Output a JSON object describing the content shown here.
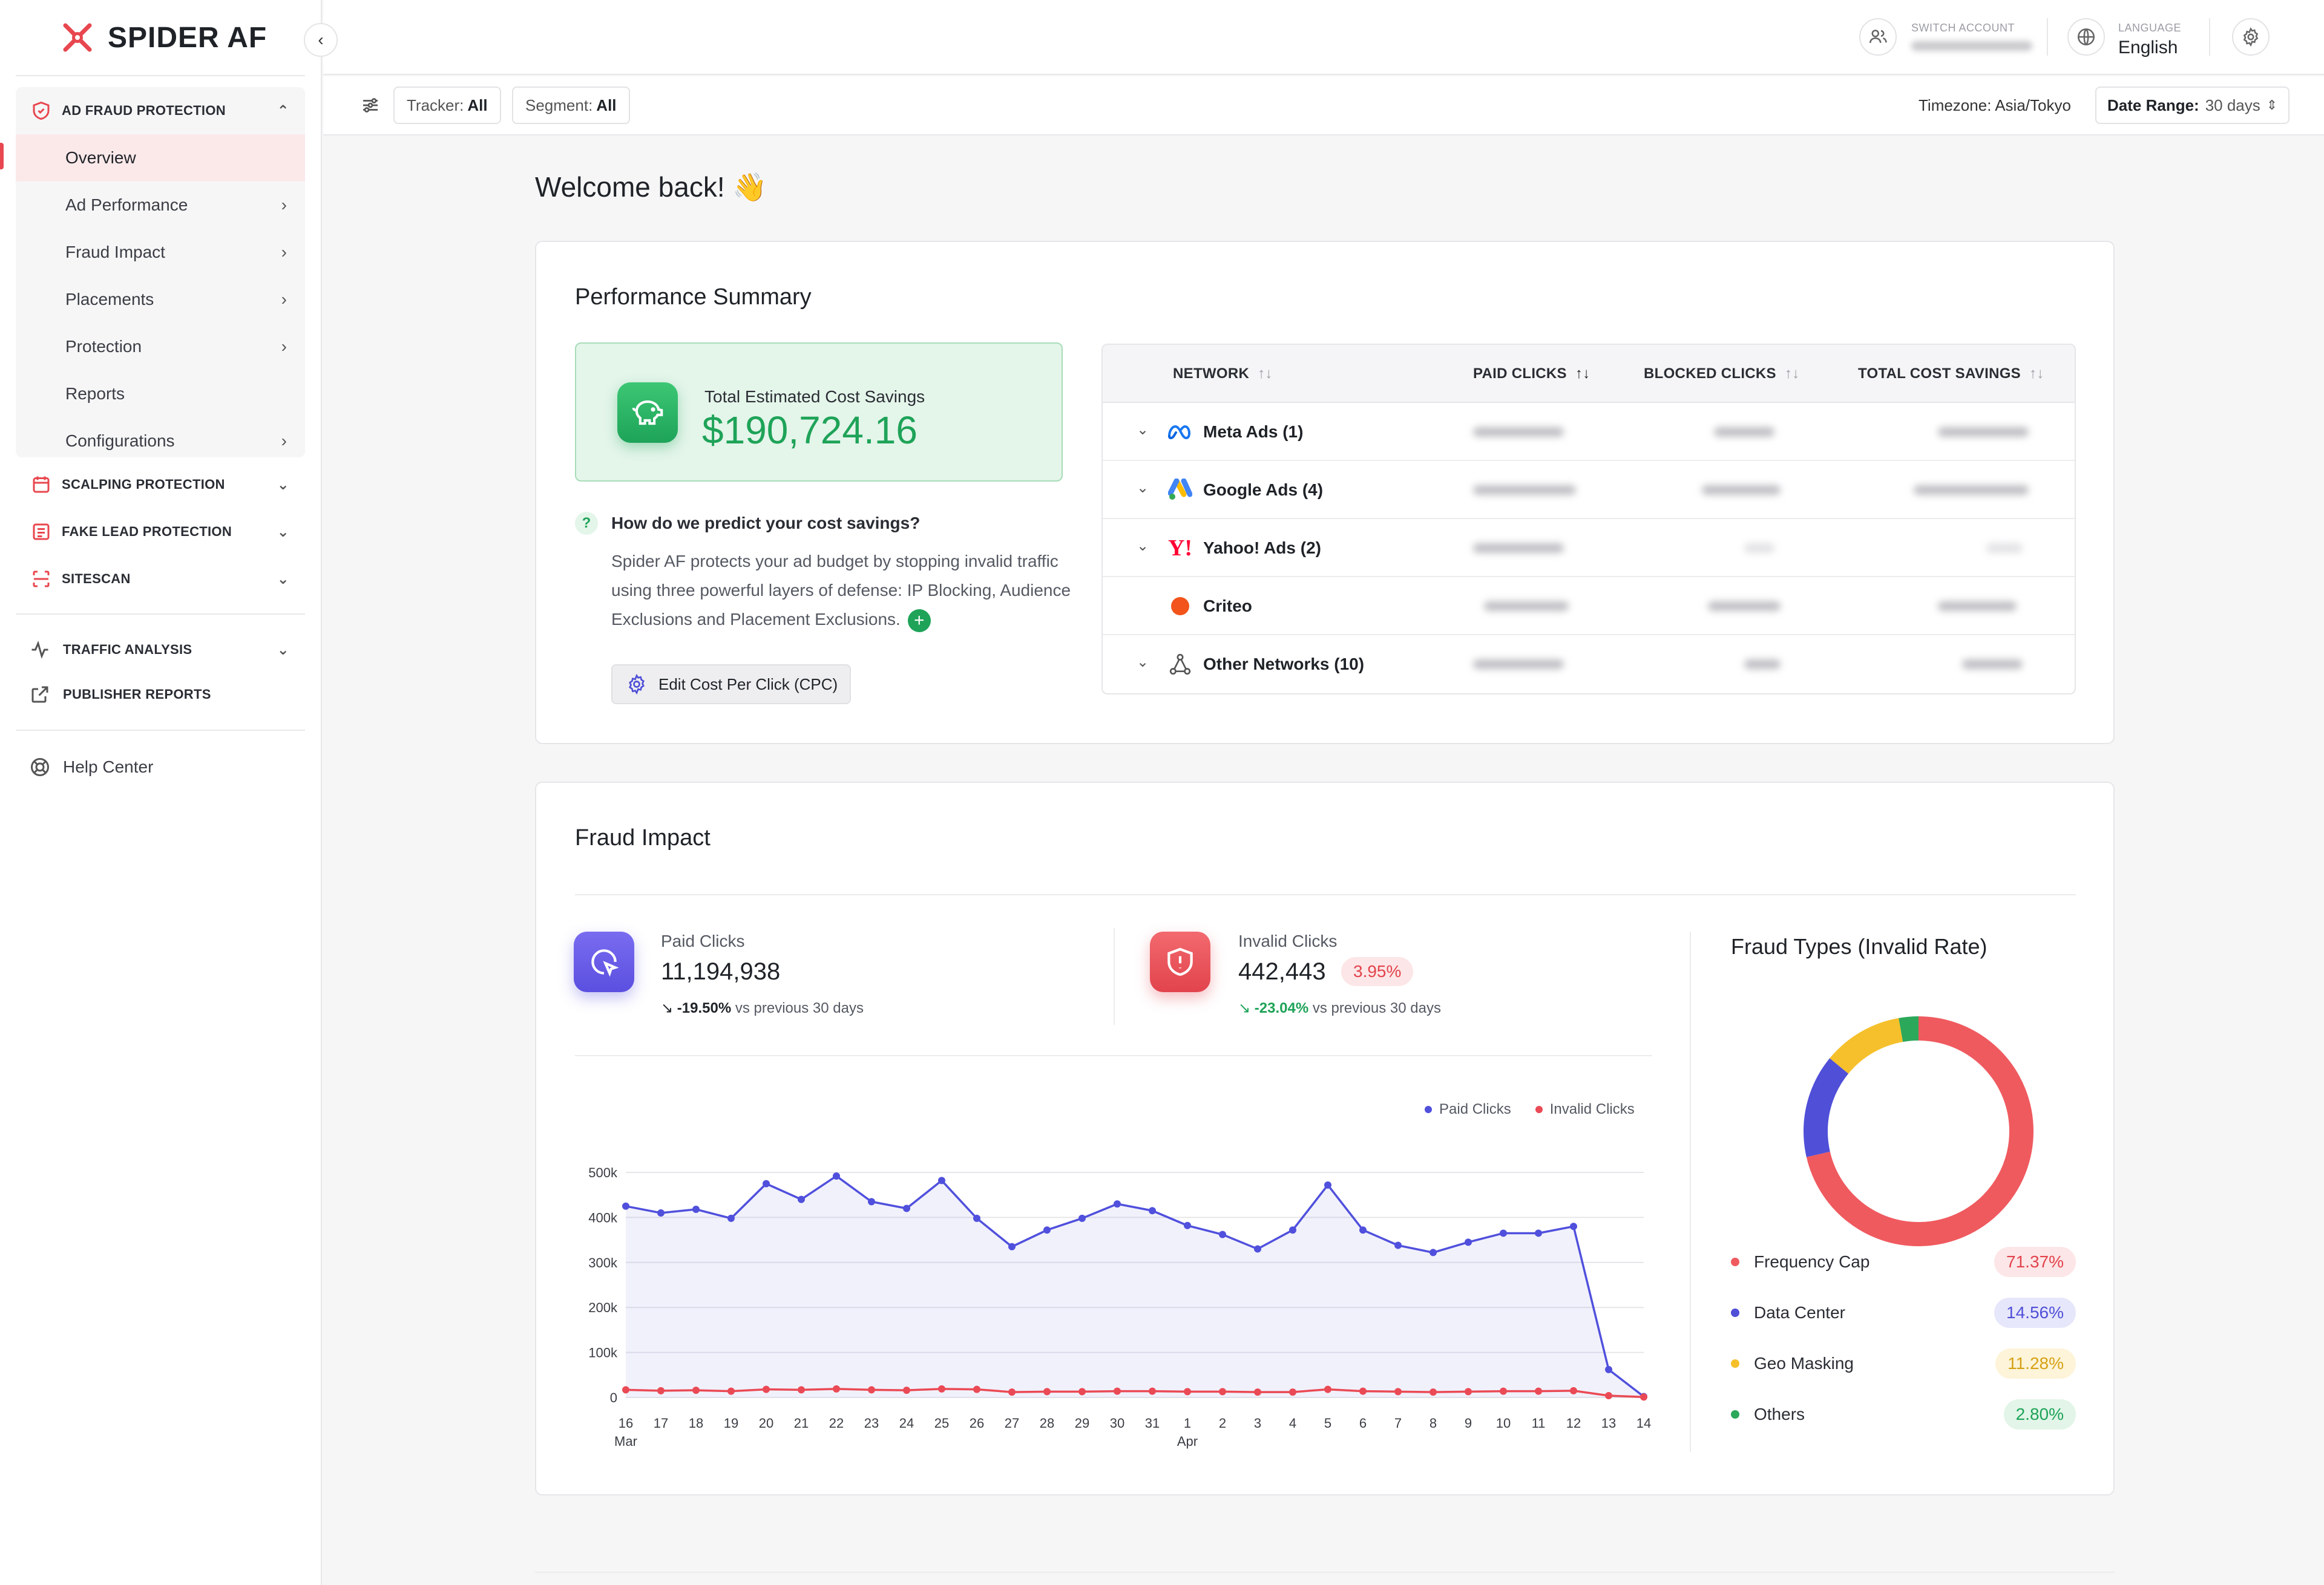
{
  "brand": {
    "name": "SPIDER AF"
  },
  "sidebar": {
    "groups": [
      {
        "label": "AD FRAUD PROTECTION",
        "icon": "shield-icon"
      },
      {
        "label": "SCALPING PROTECTION",
        "icon": "calendar-icon"
      },
      {
        "label": "FAKE LEAD PROTECTION",
        "icon": "form-icon"
      },
      {
        "label": "SITESCAN",
        "icon": "scan-icon"
      }
    ],
    "ad_fraud_items": [
      {
        "label": "Overview",
        "active": true
      },
      {
        "label": "Ad Performance"
      },
      {
        "label": "Fraud Impact"
      },
      {
        "label": "Placements"
      },
      {
        "label": "Protection"
      },
      {
        "label": "Reports"
      },
      {
        "label": "Configurations"
      }
    ],
    "traffic_analysis": "TRAFFIC ANALYSIS",
    "publisher_reports": "PUBLISHER REPORTS",
    "help_center": "Help Center"
  },
  "topbar": {
    "switch_account_label": "SWITCH ACCOUNT",
    "language_label": "LANGUAGE",
    "language_value": "English"
  },
  "filterbar": {
    "tracker_label": "Tracker:",
    "tracker_value": "All",
    "segment_label": "Segment:",
    "segment_value": "All",
    "timezone": "Timezone: Asia/Tokyo",
    "date_range_label": "Date Range:",
    "date_range_value": "30 days"
  },
  "welcome": "Welcome back! 👋",
  "performance_summary": {
    "title": "Performance Summary",
    "savings_label": "Total Estimated Cost Savings",
    "savings_value": "$190,724.16",
    "question": "How do we predict your cost savings?",
    "explanation": "Spider AF protects your ad budget by stopping invalid traffic using three powerful layers of defense: IP Blocking, Audience Exclusions and Placement Exclusions.",
    "edit_cpc": "Edit Cost Per Click (CPC)",
    "table": {
      "headers": [
        "NETWORK",
        "PAID CLICKS",
        "BLOCKED CLICKS",
        "TOTAL COST SAVINGS"
      ],
      "rows": [
        {
          "name": "Meta Ads (1)",
          "icon": "meta-icon",
          "expandable": true
        },
        {
          "name": "Google Ads (4)",
          "icon": "google-ads-icon",
          "expandable": true
        },
        {
          "name": "Yahoo! Ads (2)",
          "icon": "yahoo-icon",
          "expandable": true
        },
        {
          "name": "Criteo",
          "icon": "criteo-icon",
          "expandable": false
        },
        {
          "name": "Other Networks (10)",
          "icon": "network-icon",
          "expandable": true
        }
      ]
    }
  },
  "fraud_impact": {
    "title": "Fraud Impact",
    "paid_clicks": {
      "label": "Paid Clicks",
      "value": "11,194,938",
      "change": "-19.50%",
      "vs": "vs previous 30 days"
    },
    "invalid_clicks": {
      "label": "Invalid Clicks",
      "value": "442,443",
      "rate": "3.95%",
      "change": "-23.04%",
      "vs": "vs previous 30 days"
    },
    "legend": [
      "Paid Clicks",
      "Invalid Clicks"
    ],
    "fraud_types_title": "Fraud Types (Invalid Rate)",
    "fraud_types": [
      {
        "label": "Frequency Cap",
        "pct": "71.37%",
        "color": "#ef5a5f",
        "bg": "#fde6e7",
        "fg": "#e2434c"
      },
      {
        "label": "Data Center",
        "pct": "14.56%",
        "color": "#4f4fd8",
        "bg": "#e7e7fb",
        "fg": "#4f4fd8"
      },
      {
        "label": "Geo Masking",
        "pct": "11.28%",
        "color": "#f5c02b",
        "bg": "#fdf4d9",
        "fg": "#d6a114"
      },
      {
        "label": "Others",
        "pct": "2.80%",
        "color": "#2ca85a",
        "bg": "#e2f5e8",
        "fg": "#1ea358"
      }
    ]
  },
  "chart_data": {
    "type": "line",
    "x": [
      "16",
      "17",
      "18",
      "19",
      "20",
      "21",
      "22",
      "23",
      "24",
      "25",
      "26",
      "27",
      "28",
      "29",
      "30",
      "31",
      "1",
      "2",
      "3",
      "4",
      "5",
      "6",
      "7",
      "8",
      "9",
      "10",
      "11",
      "12",
      "13",
      "14"
    ],
    "x_group_labels": [
      {
        "at": "16",
        "label": "Mar"
      },
      {
        "at": "1",
        "label": "Apr"
      }
    ],
    "y_ticks": [
      "0",
      "100k",
      "200k",
      "300k",
      "400k",
      "500k"
    ],
    "ylim": [
      0,
      500000
    ],
    "grid": true,
    "legend_position": "top-right",
    "series": [
      {
        "name": "Paid Clicks",
        "color": "#5050dd",
        "values": [
          425000,
          410000,
          418000,
          398000,
          475000,
          440000,
          492000,
          435000,
          420000,
          482000,
          398000,
          335000,
          372000,
          398000,
          430000,
          415000,
          382000,
          362000,
          330000,
          372000,
          472000,
          372000,
          338000,
          322000,
          345000,
          365000,
          365000,
          380000,
          62000,
          2000
        ]
      },
      {
        "name": "Invalid Clicks",
        "color": "#ea4a55",
        "values": [
          17000,
          15000,
          16000,
          14000,
          18000,
          17000,
          19000,
          17000,
          16000,
          19000,
          18000,
          12000,
          13000,
          13000,
          14000,
          14000,
          13000,
          13000,
          12000,
          12000,
          18000,
          14000,
          13000,
          12000,
          13000,
          14000,
          14000,
          15000,
          4000,
          1000
        ]
      }
    ],
    "donut": {
      "slices": [
        71.37,
        14.56,
        11.28,
        2.8
      ]
    }
  }
}
